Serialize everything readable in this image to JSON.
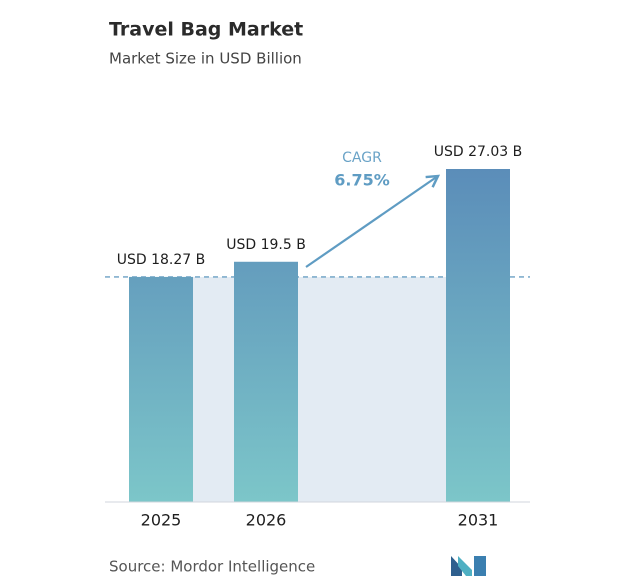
{
  "chart_data": {
    "type": "bar",
    "title": "Travel Bag Market",
    "subtitle": "Market Size in USD Billion",
    "categories": [
      "2025",
      "2026",
      "2031"
    ],
    "values": [
      18.27,
      19.5,
      27.03
    ],
    "value_labels": [
      "USD 18.27 B",
      "USD 19.5 B",
      "USD 27.03 B"
    ],
    "color": "#5b8db9",
    "cagr_label": "CAGR",
    "cagr_value": "6.75%",
    "source": "Source: Mordor Intelligence"
  }
}
